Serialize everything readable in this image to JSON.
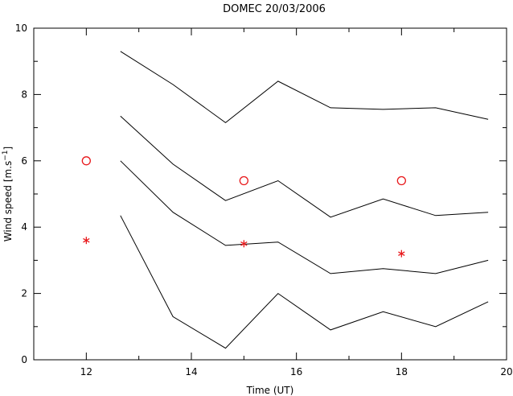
{
  "chart_data": {
    "type": "line",
    "title": "DOMEC 20/03/2006",
    "xlabel": "Time (UT)",
    "ylabel": "Wind speed [m.s",
    "ylabel_sup": "−1",
    "ylabel_close": "]",
    "xlim": [
      11,
      20
    ],
    "ylim": [
      0,
      10
    ],
    "xticks_major": [
      12,
      14,
      16,
      18,
      20
    ],
    "yticks_major": [
      0,
      2,
      4,
      6,
      8,
      10
    ],
    "x_minor_step": 1,
    "y_minor_step": 1,
    "grid": false,
    "line_color": "#000000",
    "marker_color": "#e8191c",
    "series": [
      {
        "style": "line",
        "x": [
          12.65,
          13.65,
          14.65,
          15.65,
          16.65,
          17.65,
          18.65,
          19.65
        ],
        "y": [
          9.3,
          8.3,
          7.15,
          8.4,
          7.6,
          7.55,
          7.6,
          7.25
        ]
      },
      {
        "style": "line",
        "x": [
          12.65,
          13.65,
          14.65,
          15.65,
          16.65,
          17.65,
          18.65,
          19.65
        ],
        "y": [
          7.35,
          5.9,
          4.8,
          5.4,
          4.3,
          4.85,
          4.35,
          4.45
        ]
      },
      {
        "style": "line",
        "x": [
          12.65,
          13.65,
          14.65,
          15.65,
          16.65,
          17.65,
          18.65,
          19.65
        ],
        "y": [
          6.0,
          4.45,
          3.45,
          3.55,
          2.6,
          2.75,
          2.6,
          3.0
        ]
      },
      {
        "style": "line",
        "x": [
          12.65,
          13.65,
          14.65,
          15.65,
          16.65,
          17.65,
          18.65,
          19.65
        ],
        "y": [
          4.35,
          1.3,
          0.35,
          2.0,
          0.9,
          1.45,
          1.0,
          1.75
        ]
      },
      {
        "style": "circle",
        "x": [
          12,
          15,
          18
        ],
        "y": [
          6.0,
          5.4,
          5.4
        ]
      },
      {
        "style": "star",
        "x": [
          12,
          15,
          18
        ],
        "y": [
          3.6,
          3.5,
          3.2
        ]
      }
    ]
  }
}
